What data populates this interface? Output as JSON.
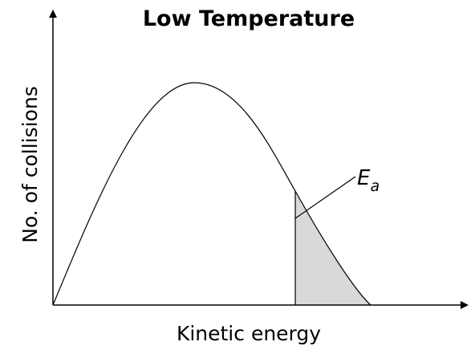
{
  "title": "Low Temperature",
  "y_axis_label": "No. of collisions",
  "x_axis_label": "Kinetic energy",
  "annotation": {
    "symbol": "E",
    "subscript": "a"
  }
}
